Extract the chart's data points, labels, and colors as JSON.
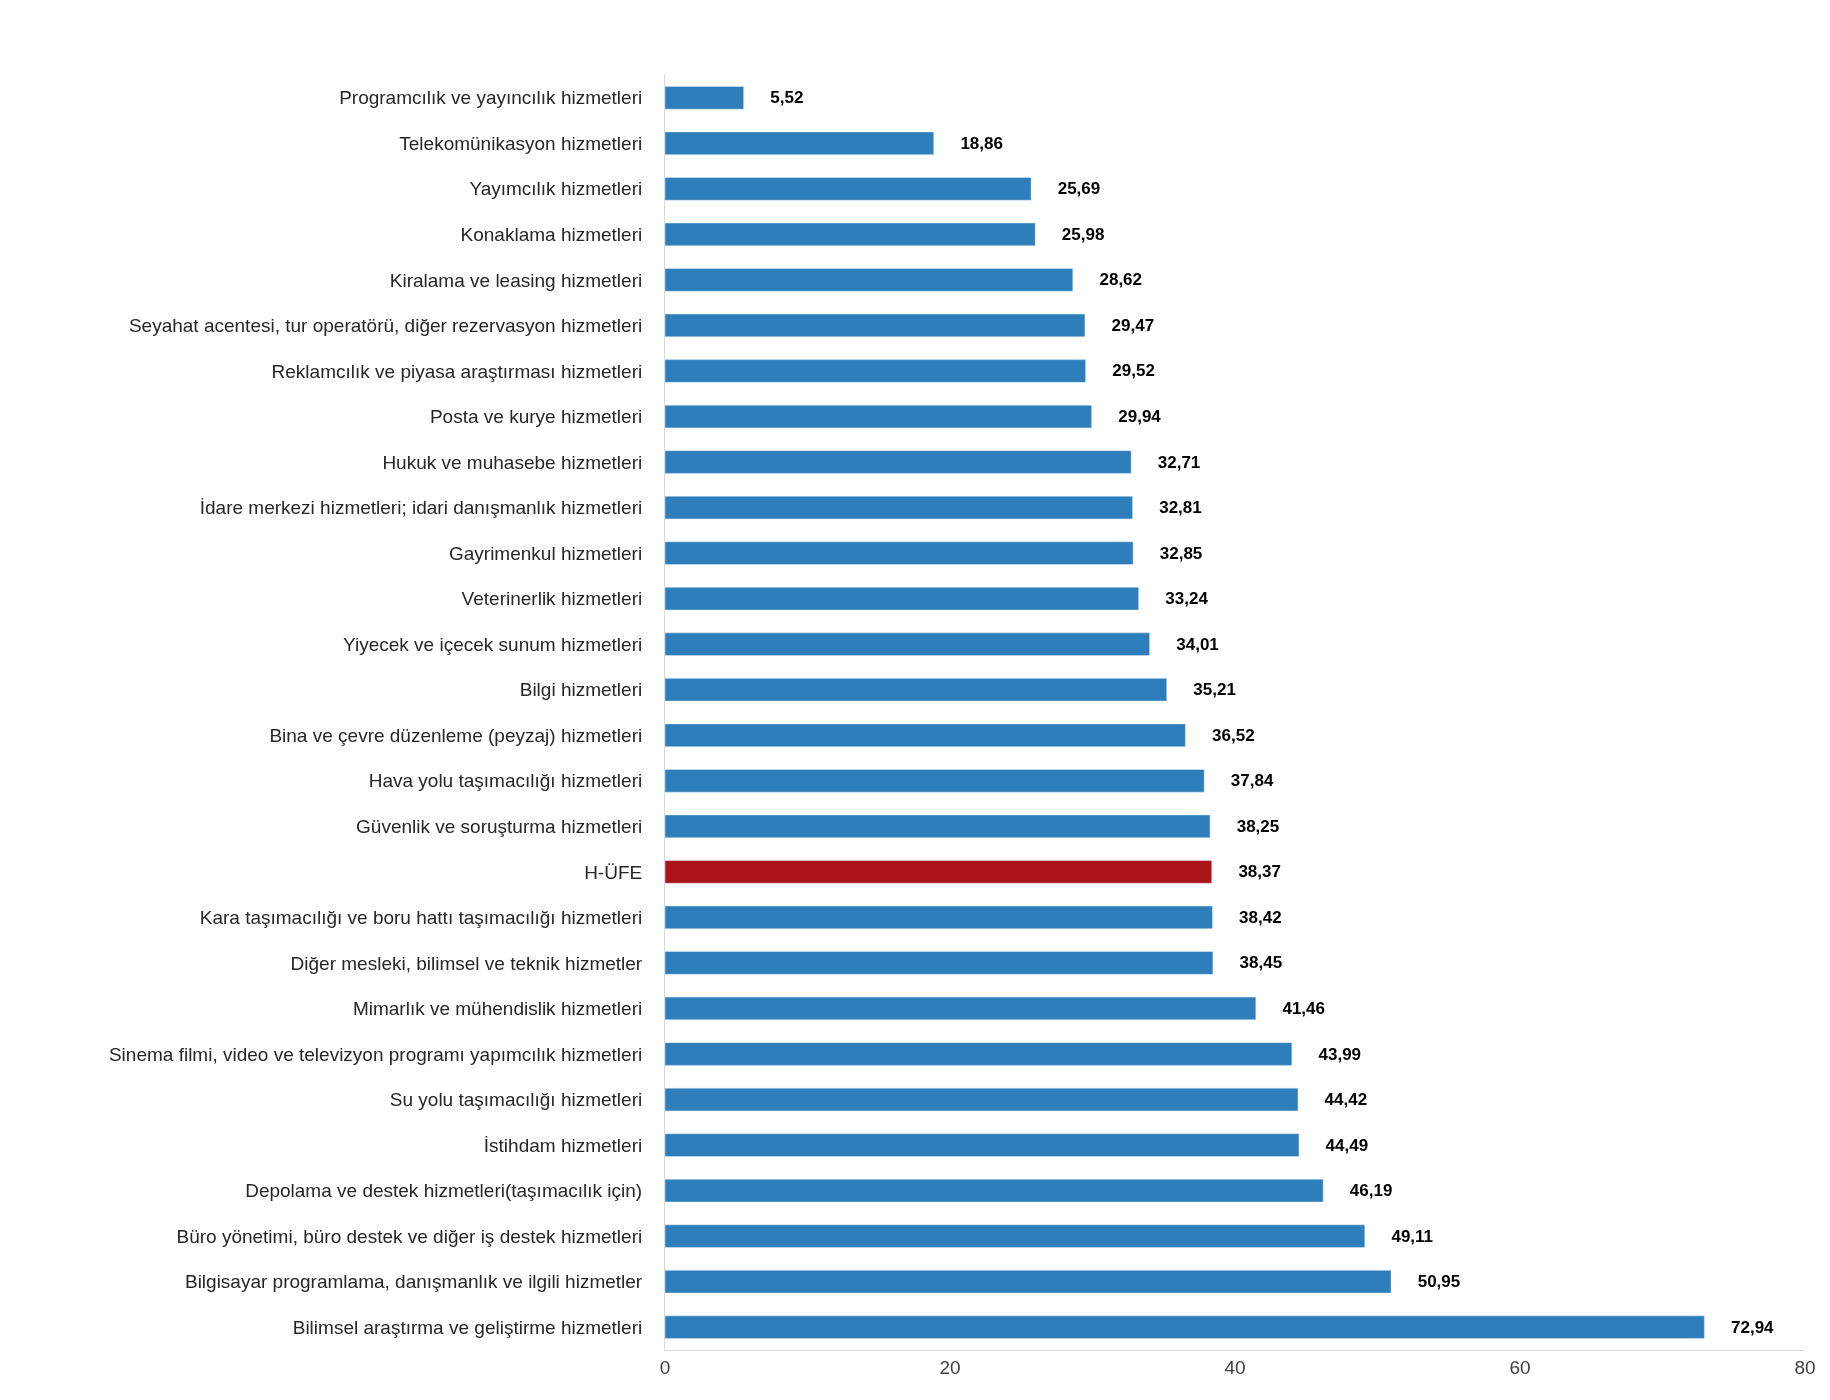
{
  "chart_data": {
    "type": "bar",
    "orientation": "horizontal",
    "categories": [
      "Programcılık ve yayıncılık hizmetleri",
      "Telekomünikasyon hizmetleri",
      "Yayımcılık hizmetleri",
      "Konaklama hizmetleri",
      "Kiralama ve leasing hizmetleri",
      "Seyahat acentesi, tur operatörü, diğer rezervasyon hizmetleri",
      "Reklamcılık ve piyasa araştırması hizmetleri",
      "Posta ve kurye hizmetleri",
      "Hukuk ve muhasebe hizmetleri",
      "İdare merkezi hizmetleri; idari danışmanlık hizmetleri",
      "Gayrimenkul hizmetleri",
      "Veterinerlik hizmetleri",
      "Yiyecek ve içecek sunum hizmetleri",
      "Bilgi hizmetleri",
      "Bina ve çevre düzenleme (peyzaj) hizmetleri",
      "Hava yolu taşımacılığı hizmetleri",
      "Güvenlik ve soruşturma hizmetleri",
      "H-ÜFE",
      "Kara taşımacılığı ve boru hattı taşımacılığı hizmetleri",
      "Diğer mesleki, bilimsel ve teknik hizmetler",
      "Mimarlık ve mühendislik hizmetleri",
      "Sinema filmi, video ve televizyon programı yapımcılık hizmetleri",
      "Su yolu taşımacılığı hizmetleri",
      "İstihdam hizmetleri",
      "Depolama ve destek hizmetleri(taşımacılık için)",
      "Büro yönetimi, büro destek ve diğer iş destek hizmetleri",
      "Bilgisayar programlama, danışmanlık ve ilgili hizmetler",
      "Bilimsel araştırma ve geliştirme hizmetleri"
    ],
    "values": [
      5.52,
      18.86,
      25.69,
      25.98,
      28.62,
      29.47,
      29.52,
      29.94,
      32.71,
      32.81,
      32.85,
      33.24,
      34.01,
      35.21,
      36.52,
      37.84,
      38.25,
      38.37,
      38.42,
      38.45,
      41.46,
      43.99,
      44.42,
      44.49,
      46.19,
      49.11,
      50.95,
      72.94
    ],
    "value_labels": [
      "5,52",
      "18,86",
      "25,69",
      "25,98",
      "28,62",
      "29,47",
      "29,52",
      "29,94",
      "32,71",
      "32,81",
      "32,85",
      "33,24",
      "34,01",
      "35,21",
      "36,52",
      "37,84",
      "38,25",
      "38,37",
      "38,42",
      "38,45",
      "41,46",
      "43,99",
      "44,42",
      "44,49",
      "46,19",
      "49,11",
      "50,95",
      "72,94"
    ],
    "colors": [
      "#2e7ebb",
      "#2e7ebb",
      "#2e7ebb",
      "#2e7ebb",
      "#2e7ebb",
      "#2e7ebb",
      "#2e7ebb",
      "#2e7ebb",
      "#2e7ebb",
      "#2e7ebb",
      "#2e7ebb",
      "#2e7ebb",
      "#2e7ebb",
      "#2e7ebb",
      "#2e7ebb",
      "#2e7ebb",
      "#2e7ebb",
      "#ab141b",
      "#2e7ebb",
      "#2e7ebb",
      "#2e7ebb",
      "#2e7ebb",
      "#2e7ebb",
      "#2e7ebb",
      "#2e7ebb",
      "#2e7ebb",
      "#2e7ebb",
      "#2e7ebb"
    ],
    "xlim": [
      0,
      80
    ],
    "xticks": [
      0,
      20,
      40,
      60,
      80
    ],
    "legend": false
  }
}
